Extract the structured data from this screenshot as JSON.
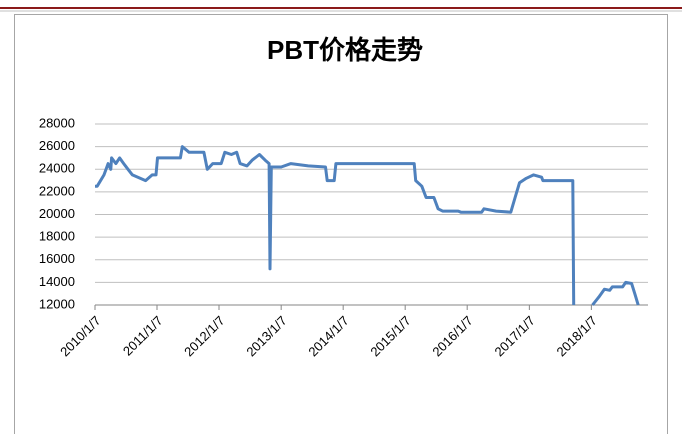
{
  "chart_data": {
    "type": "line",
    "title": "PBT价格走势",
    "x": [
      "2010/1/7",
      "2010/1/20",
      "2010/3/1",
      "2010/3/25",
      "2010/4/10",
      "2010/4/15",
      "2010/5/10",
      "2010/6/1",
      "2010/6/25",
      "2010/7/20",
      "2010/8/15",
      "2010/11/1",
      "2010/12/10",
      "2011/1/1",
      "2011/1/10",
      "2011/5/25",
      "2011/6/5",
      "2011/7/15",
      "2011/10/10",
      "2011/10/30",
      "2011/12/1",
      "2012/1/20",
      "2012/2/10",
      "2012/3/20",
      "2012/4/20",
      "2012/5/10",
      "2012/6/20",
      "2012/7/20",
      "2012/9/1",
      "2012/10/5",
      "2012/10/28",
      "2012/11/2",
      "2012/11/10",
      "2013/1/7",
      "2013/3/5",
      "2013/6/15",
      "2013/9/25",
      "2013/10/5",
      "2013/11/15",
      "2013/11/25",
      "2015/3/1",
      "2015/3/10",
      "2015/4/15",
      "2015/5/10",
      "2015/6/25",
      "2015/7/20",
      "2015/8/15",
      "2015/11/15",
      "2015/12/1",
      "2016/4/1",
      "2016/4/15",
      "2016/6/25",
      "2016/9/20",
      "2016/10/15",
      "2016/11/10",
      "2016/12/20",
      "2017/2/1",
      "2017/3/20",
      "2017/3/28",
      "2017/9/20",
      "2017/9/25",
      "2017/10/10",
      "2018/1/14",
      "2018/2/20",
      "2018/3/25",
      "2018/4/25",
      "2018/5/10",
      "2018/7/10",
      "2018/7/28",
      "2018/9/1",
      "2018/9/20",
      "2018/10/10"
    ],
    "series": [
      {
        "name": "PBT",
        "color": "#4f81bd",
        "values": [
          22500,
          22500,
          23500,
          24500,
          24000,
          25000,
          24500,
          25000,
          24500,
          24000,
          23500,
          23000,
          23500,
          23500,
          25000,
          25000,
          26000,
          25500,
          25500,
          24000,
          24500,
          24500,
          25500,
          25300,
          25500,
          24500,
          24300,
          24800,
          25300,
          24800,
          24500,
          15200,
          24200,
          24200,
          24500,
          24300,
          24200,
          23000,
          23000,
          24500,
          24500,
          23000,
          22500,
          21500,
          21500,
          20500,
          20300,
          20300,
          20200,
          20200,
          20500,
          20300,
          20200,
          21500,
          22800,
          23200,
          23500,
          23300,
          23000,
          23000,
          12000,
          null,
          12000,
          12700,
          13400,
          13300,
          13600,
          13600,
          14000,
          13900,
          13000,
          12000
        ]
      }
    ],
    "xlim": [
      "2010/1/7",
      "2018/11/7"
    ],
    "xticks": [
      "2010/1/7",
      "2011/1/7",
      "2012/1/7",
      "2013/1/7",
      "2014/1/7",
      "2015/1/7",
      "2016/1/7",
      "2017/1/7",
      "2018/1/7"
    ],
    "ylim": [
      12000,
      28000
    ],
    "yticks": [
      12000,
      14000,
      16000,
      18000,
      20000,
      22000,
      24000,
      26000,
      28000
    ],
    "grid": true
  }
}
